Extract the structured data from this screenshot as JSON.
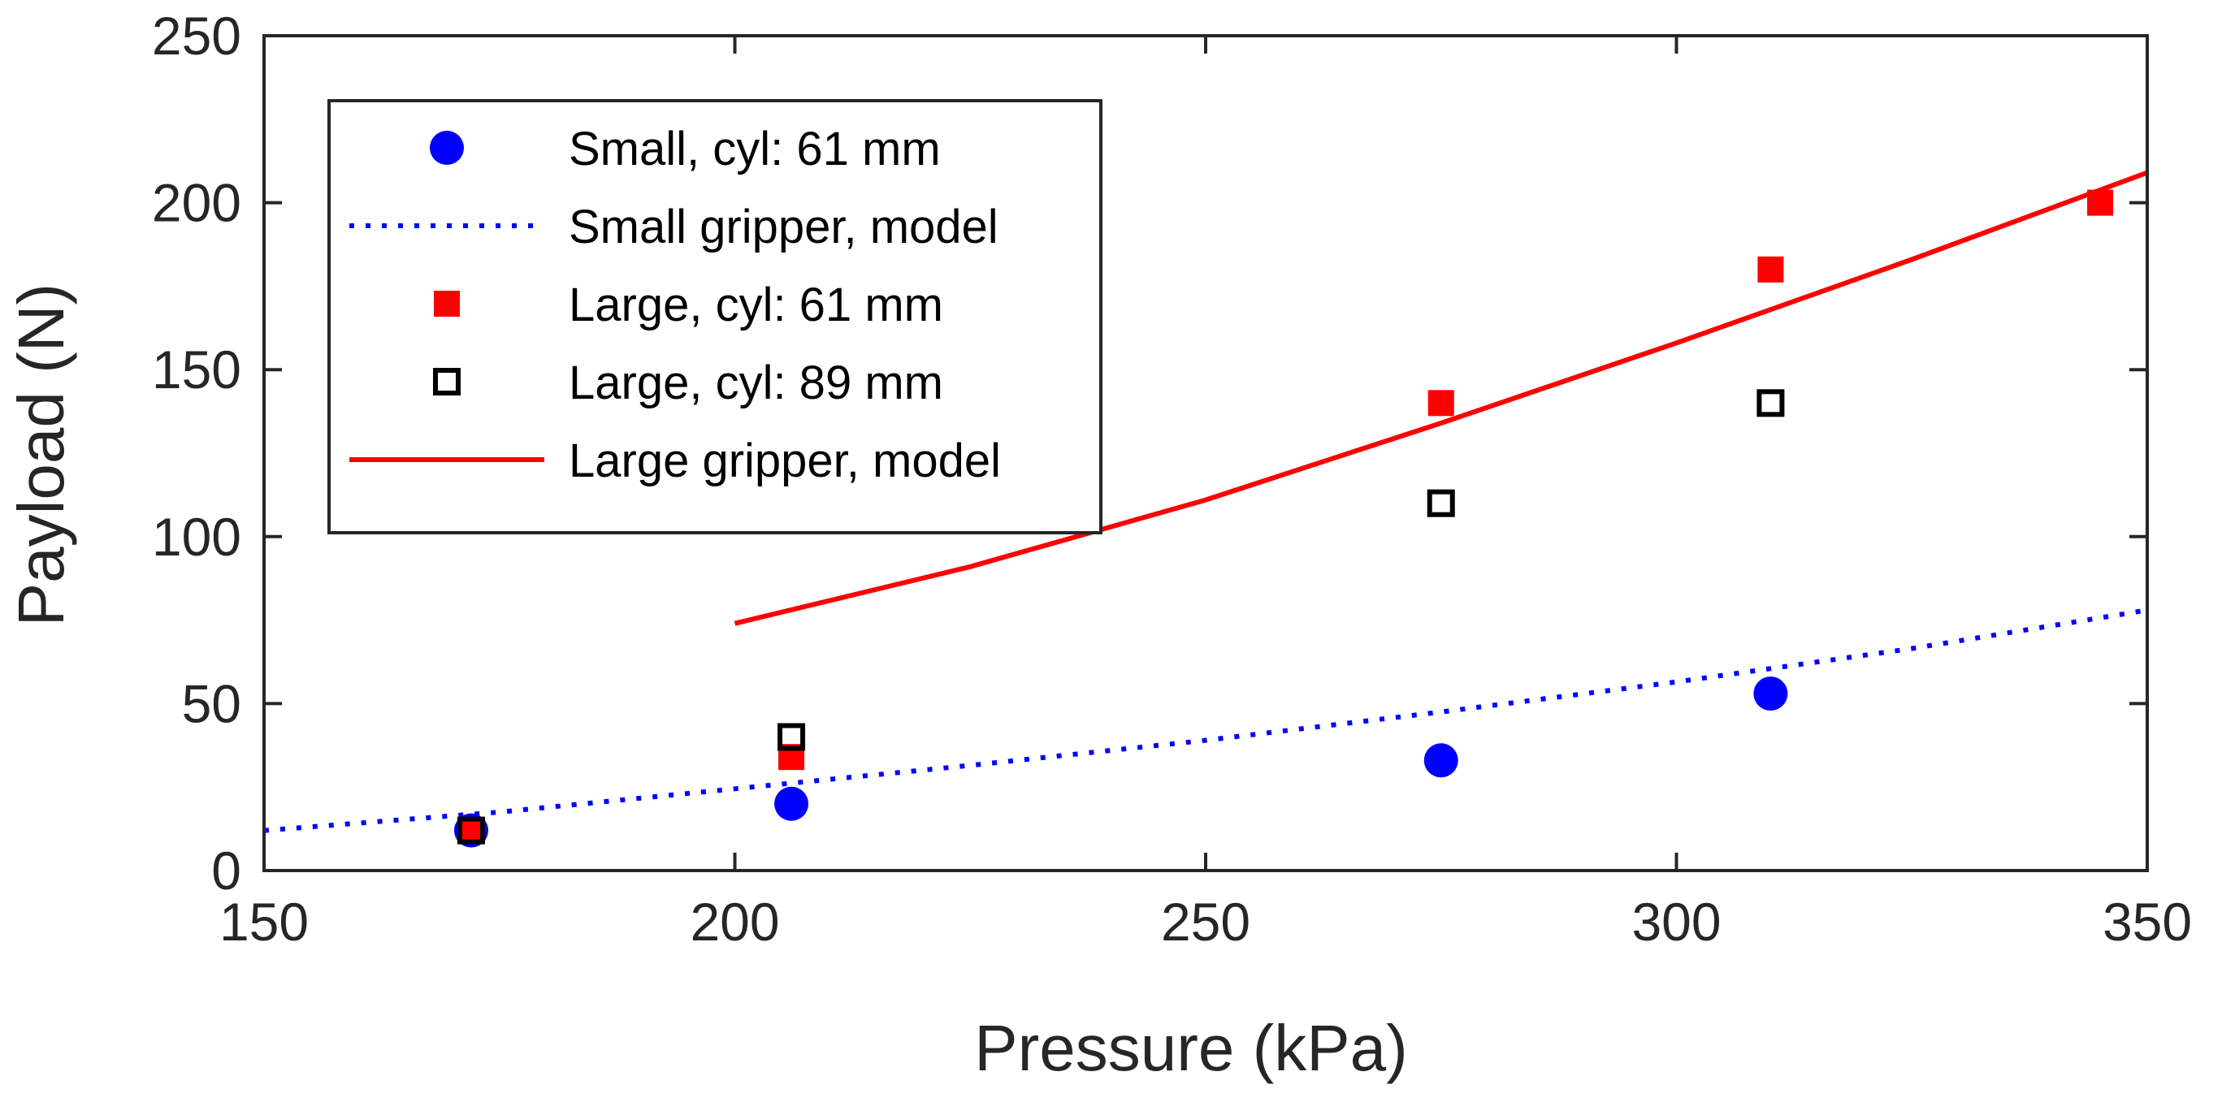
{
  "chart_data": {
    "type": "scatter",
    "title": "",
    "xlabel": "Pressure (kPa)",
    "ylabel": "Payload (N)",
    "xlim": [
      150,
      350
    ],
    "ylim": [
      0,
      250
    ],
    "xticks": [
      150,
      200,
      250,
      300,
      350
    ],
    "yticks": [
      0,
      50,
      100,
      150,
      200,
      250
    ],
    "xtick_labels": [
      "150",
      "200",
      "250",
      "300",
      "350"
    ],
    "ytick_labels": [
      "0",
      "50",
      "100",
      "150",
      "200",
      "250"
    ],
    "grid": false,
    "box": true,
    "legend_position": "top-left",
    "series": [
      {
        "name": "Small, cyl: 61 mm",
        "kind": "marker",
        "marker": "filled-circle",
        "color": "#0000ff",
        "x": [
          172,
          206,
          275,
          310
        ],
        "y": [
          12,
          20,
          33,
          53
        ]
      },
      {
        "name": "Small gripper, model",
        "kind": "line",
        "line_style": "dotted",
        "color": "#0000ff",
        "x": [
          150,
          175,
          200,
          225,
          250,
          275,
          300,
          325,
          350
        ],
        "y": [
          12,
          17.5,
          24.5,
          31.5,
          39,
          47.5,
          56.5,
          66.5,
          78
        ]
      },
      {
        "name": "Large, cyl: 61 mm",
        "kind": "marker",
        "marker": "filled-square",
        "color": "#ff0000",
        "x": [
          172,
          206,
          275,
          310,
          345
        ],
        "y": [
          12,
          34,
          140,
          180,
          200
        ]
      },
      {
        "name": "Large, cyl: 89 mm",
        "kind": "marker",
        "marker": "open-square",
        "color": "#000000",
        "x": [
          172,
          206,
          275,
          310
        ],
        "y": [
          12,
          40,
          110,
          140
        ]
      },
      {
        "name": "Large gripper, model",
        "kind": "line",
        "line_style": "solid",
        "color": "#ff0000",
        "x": [
          200,
          225,
          250,
          275,
          300,
          325,
          350
        ],
        "y": [
          74,
          91,
          111,
          134,
          158,
          183,
          209
        ]
      }
    ]
  }
}
